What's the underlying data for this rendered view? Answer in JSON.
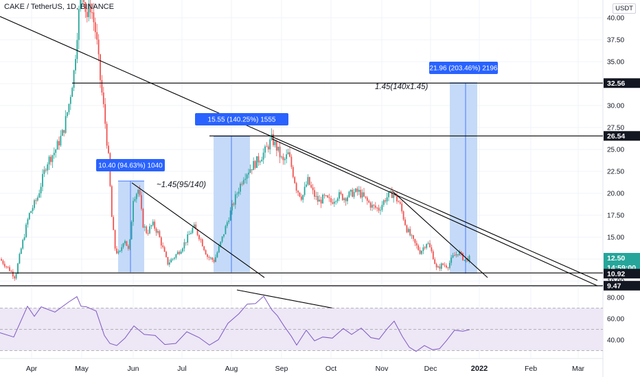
{
  "header": {
    "symbol_title": "CAKE / TetherUS, 1D, BINANCE",
    "currency_badge": "USDT"
  },
  "price_axis": {
    "labels": [
      "40.00",
      "37.50",
      "35.00",
      "32.50",
      "30.00",
      "27.50",
      "25.00",
      "22.50",
      "20.00",
      "17.50",
      "15.00",
      "12.50",
      "10.00"
    ],
    "values": [
      40,
      37.5,
      35,
      32.5,
      30,
      27.5,
      25,
      22.5,
      20,
      17.5,
      15,
      12.5,
      10
    ]
  },
  "rsi_axis": {
    "labels": [
      "80.00",
      "60.00",
      "40.00"
    ],
    "values": [
      80,
      60,
      40
    ]
  },
  "time_axis": {
    "labels": [
      "Apr",
      "May",
      "Jun",
      "Jul",
      "Aug",
      "Sep",
      "Oct",
      "Nov",
      "Dec",
      "2022",
      "Feb",
      "Mar"
    ],
    "bold_label": "2022"
  },
  "price_tags": [
    {
      "text": "32.56",
      "value": 32.56,
      "style": "dark"
    },
    {
      "text": "26.54",
      "value": 26.54,
      "style": "dark"
    },
    {
      "text": "12.50",
      "value": 12.5,
      "style": "green"
    },
    {
      "text": "14:59:00",
      "value": 12.5,
      "style": "countdown"
    },
    {
      "text": "10.92",
      "value": 10.92,
      "style": "dark"
    },
    {
      "text": "9.47",
      "value": 9.47,
      "style": "dark"
    }
  ],
  "measure_labels": [
    {
      "text": "10.40 (94.63%) 1040"
    },
    {
      "text": "15.55 (140.25%) 1555"
    },
    {
      "text": "21.96 (203.46%) 2196"
    }
  ],
  "annotations": [
    {
      "text": "~1.45(95/140)"
    },
    {
      "text": "1.45(140x1.45)"
    }
  ],
  "colors": {
    "up": "#26a69a",
    "down": "#ef5350",
    "measure_fill": "#bbd3f7",
    "measure_label_bg": "#2962ff",
    "rsi_line": "#7e57c2",
    "rsi_band": "#ede7f6",
    "last_price": "#26a69a"
  }
}
